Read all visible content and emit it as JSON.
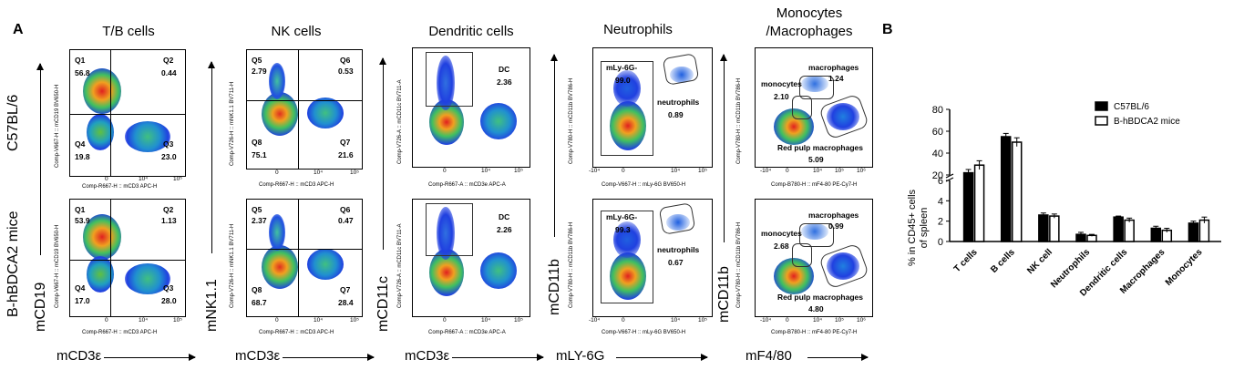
{
  "panel_a": "A",
  "panel_b": "B",
  "columns": [
    "T/B cells",
    "NK cells",
    "Dendritic cells",
    "Neutrophils",
    "Monocytes\n/Macrophages"
  ],
  "column_titles": {
    "tb": "T/B cells",
    "nk": "NK cells",
    "dc": "Dendritic cells",
    "neu": "Neutrophils",
    "mono_line1": "Monocytes",
    "mono_line2": "/Macrophages"
  },
  "rows": {
    "top": "C57BL/6",
    "bottom": "B-hBDCA2 mice"
  },
  "y_markers": {
    "tb": "mCD19",
    "nk": "mNK1.1",
    "dc": "mCD11c",
    "neu": "mCD11b",
    "mono": "mCD11b"
  },
  "x_markers": {
    "tb": "mCD3ε",
    "nk": "mCD3ε",
    "dc": "mCD3ε",
    "neu": "mLY-6G",
    "mono": "mF4/80"
  },
  "axis_texts": {
    "tb_x": "Comp-R667-H :: mCD3 APC-H",
    "tb_y": "Comp-V667-H :: mCD19 BV650-H",
    "nk_x": "Comp-R667-H :: mCD3 APC-H",
    "nk_y": "Comp-V726-H :: mNK1.1 BV711-H",
    "dc_x": "Comp-R667-A :: mCD3e APC-A",
    "dc_y": "Comp-V726-A :: mCD11c BV711-A",
    "neu_x": "Comp-V667-H :: mLy-6G BV650-H",
    "neu_y": "Comp-V780-H :: mCD11b BV786-H",
    "mono_x": "Comp-B780-H :: mF4-80 PE-Cy7-H",
    "mono_y": "Comp-V780-H :: mCD11b BV786-H"
  },
  "gates": {
    "tb_top": {
      "q1": "Q1",
      "q1v": "56.8",
      "q2": "Q2",
      "q2v": "0.44",
      "q3": "Q3",
      "q3v": "23.0",
      "q4": "Q4",
      "q4v": "19.8"
    },
    "tb_bot": {
      "q1": "Q1",
      "q1v": "53.9",
      "q2": "Q2",
      "q2v": "1.13",
      "q3": "Q3",
      "q3v": "28.0",
      "q4": "Q4",
      "q4v": "17.0"
    },
    "nk_top": {
      "q5": "Q5",
      "q5v": "2.79",
      "q6": "Q6",
      "q6v": "0.53",
      "q7": "Q7",
      "q7v": "21.6",
      "q8": "Q8",
      "q8v": "75.1"
    },
    "nk_bot": {
      "q5": "Q5",
      "q5v": "2.37",
      "q6": "Q6",
      "q6v": "0.47",
      "q7": "Q7",
      "q7v": "28.4",
      "q8": "Q8",
      "q8v": "68.7"
    },
    "dc_top": {
      "label": "DC",
      "value": "2.36"
    },
    "dc_bot": {
      "label": "DC",
      "value": "2.26"
    },
    "neu_top": {
      "gate": "mLy-6G-",
      "gate_v": "99.0",
      "label": "neutrophils",
      "value": "0.89"
    },
    "neu_bot": {
      "gate": "mLy-6G-",
      "gate_v": "99.3",
      "label": "neutrophils",
      "value": "0.67"
    },
    "mono_top": {
      "mac": "macrophages",
      "mac_v": "1.24",
      "mono": "monocytes",
      "mono_v": "2.10",
      "rpm": "Red pulp macrophages",
      "rpm_v": "5.09"
    },
    "mono_bot": {
      "mac": "macrophages",
      "mac_v": "0.99",
      "mono": "monocytes",
      "mono_v": "2.68",
      "rpm": "Red pulp macrophages",
      "rpm_v": "4.80"
    }
  },
  "ticks": {
    "zero": "0",
    "e3": "10³",
    "e4": "10⁴",
    "e5": "10⁵",
    "e6": "10⁶",
    "neg3": "-10³",
    "neg4": "-10⁴"
  },
  "chart_data": {
    "type": "bar",
    "ylabel": "% in CD45+ cells of spleen",
    "ylabel_line1": "% in CD45+ cells",
    "ylabel_line2": "of spleen",
    "categories": [
      "T cells",
      "B cells",
      "NK cell",
      "Neutrophils",
      "Dendritic cells",
      "Macrophages",
      "Monocytes"
    ],
    "series": [
      {
        "name": "C57BL/6",
        "values": [
          22,
          55,
          2.6,
          0.7,
          2.4,
          1.3,
          1.8
        ],
        "errors": [
          3,
          3,
          0.2,
          0.2,
          0.1,
          0.2,
          0.2
        ],
        "color": "#000000"
      },
      {
        "name": "B-hBDCA2 mice",
        "values": [
          29,
          50,
          2.5,
          0.6,
          2.1,
          1.1,
          2.1
        ],
        "errors": [
          4,
          4,
          0.2,
          0.1,
          0.2,
          0.2,
          0.3
        ],
        "color": "#ffffff"
      }
    ],
    "y_break": [
      6,
      20
    ],
    "yticks_lower": [
      "0",
      "2",
      "4",
      "6"
    ],
    "yticks_upper": [
      "20",
      "40",
      "60",
      "80"
    ],
    "ylim": [
      0,
      80
    ],
    "legend_position": "top-right"
  }
}
